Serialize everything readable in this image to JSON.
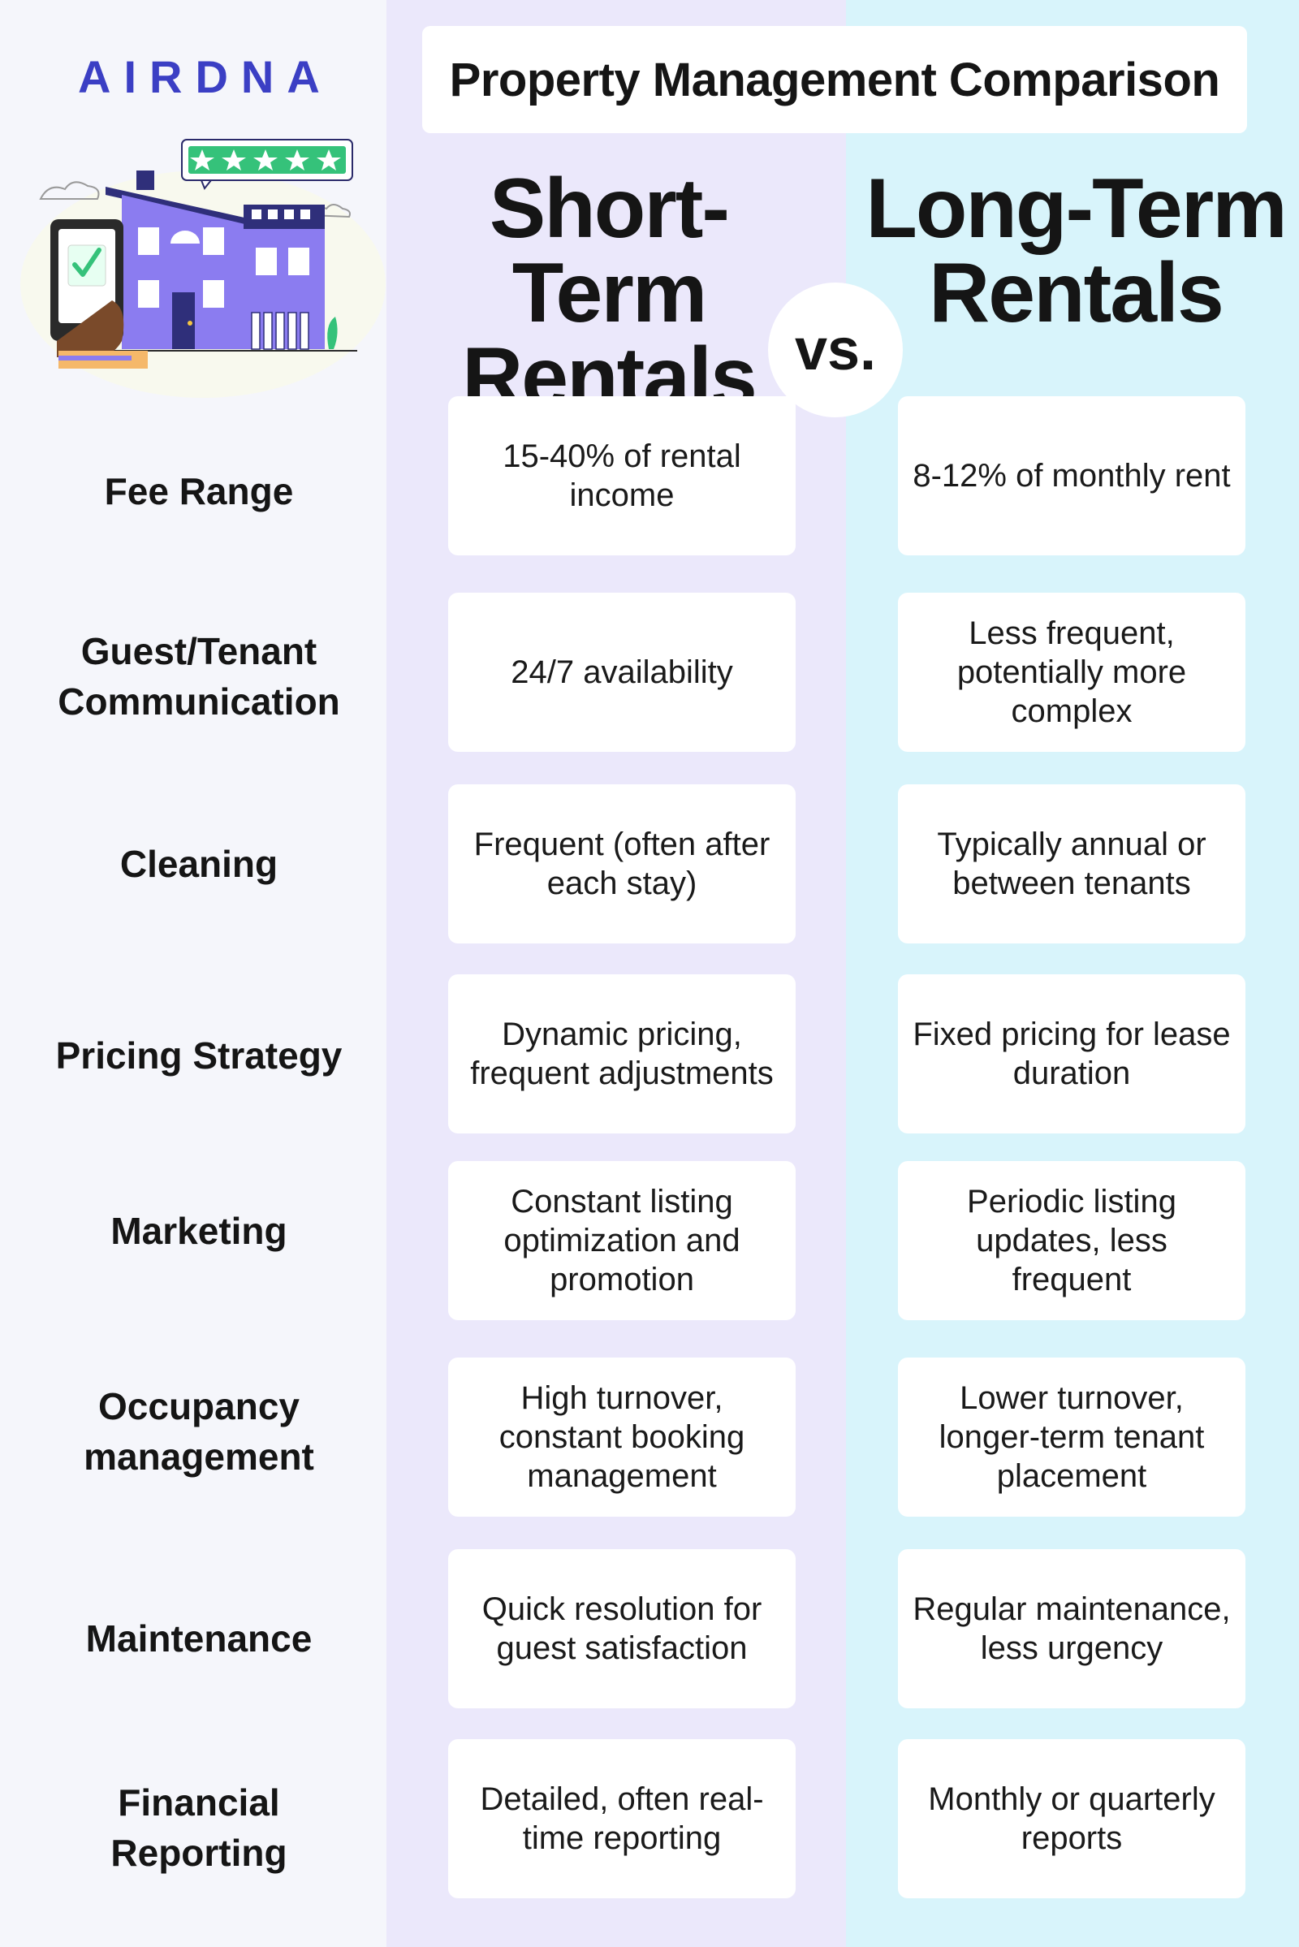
{
  "brand": {
    "logo_text": "AIRDNA"
  },
  "title": "Property Management Comparison",
  "columns": {
    "short_term": {
      "line1": "Short-Term",
      "line2": "Rentals"
    },
    "long_term": {
      "line1": "Long-Term",
      "line2": "Rentals"
    },
    "vs_label": "vs."
  },
  "rows": [
    {
      "label_lines": [
        "Fee Range"
      ],
      "short_term": "15-40% of rental income",
      "long_term": "8-12% of monthly rent"
    },
    {
      "label_lines": [
        "Guest/Tenant",
        "Communication"
      ],
      "short_term": "24/7 availability",
      "long_term": "Less frequent, potentially more complex"
    },
    {
      "label_lines": [
        "Cleaning"
      ],
      "short_term": "Frequent (often after each stay)",
      "long_term": "Typically annual or between tenants"
    },
    {
      "label_lines": [
        "Pricing Strategy"
      ],
      "short_term": "Dynamic pricing, frequent adjustments",
      "long_term": "Fixed pricing for lease duration"
    },
    {
      "label_lines": [
        "Marketing"
      ],
      "short_term": "Constant listing optimization and promotion",
      "long_term": "Periodic listing updates, less frequent"
    },
    {
      "label_lines": [
        "Occupancy",
        "management"
      ],
      "short_term": "High turnover, constant booking management",
      "long_term": "Lower turnover, longer-term tenant placement"
    },
    {
      "label_lines": [
        "Maintenance"
      ],
      "short_term": "Quick resolution for guest satisfaction",
      "long_term": "Regular maintenance, less urgency"
    },
    {
      "label_lines": [
        "Financial",
        "Reporting"
      ],
      "short_term": "Detailed, often real-time reporting",
      "long_term": "Monthly or quarterly reports"
    }
  ],
  "colors": {
    "left_bg": "#f5f6fb",
    "short_term_bg": "#ebe8fb",
    "long_term_bg": "#d8f4fb",
    "logo": "#3b3fc4",
    "house": "#8b7cf0",
    "stars": "#35c27a"
  },
  "illustration": {
    "icons": [
      "house-illustration",
      "phone-checkmark-icon",
      "five-star-rating-icon"
    ]
  }
}
